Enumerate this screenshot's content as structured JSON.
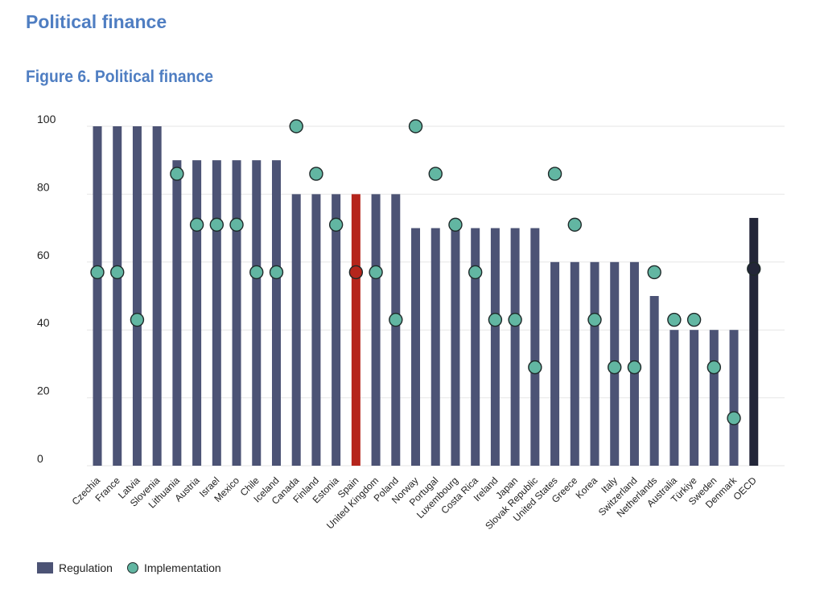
{
  "page": {
    "heading": "Political finance",
    "figure_title": "Figure 6. Political finance"
  },
  "colors": {
    "regulation": "#4c5375",
    "highlight": "#b5251c",
    "oecd": "#232639",
    "implementation": "#62b6a2",
    "grid": "#e6e6e6",
    "heading": "#4f7ec2"
  },
  "chart_data": {
    "type": "bar",
    "categories": [
      "Czechia",
      "France",
      "Latvia",
      "Slovenia",
      "Lithuania",
      "Austria",
      "Israel",
      "Mexico",
      "Chile",
      "Iceland",
      "Canada",
      "Finland",
      "Estonia",
      "Spain",
      "United Kingdom",
      "Poland",
      "Norway",
      "Portugal",
      "Luxembourg",
      "Costa Rica",
      "Ireland",
      "Japan",
      "Slovak Republic",
      "United States",
      "Greece",
      "Korea",
      "Italy",
      "Switzerland",
      "Netherlands",
      "Australia",
      "Türkiye",
      "Sweden",
      "Denmark",
      "OECD"
    ],
    "series": [
      {
        "name": "Regulation",
        "kind": "bar",
        "values": [
          100,
          100,
          100,
          100,
          90,
          90,
          90,
          90,
          90,
          90,
          80,
          80,
          80,
          80,
          80,
          80,
          70,
          70,
          70,
          70,
          70,
          70,
          70,
          60,
          60,
          60,
          60,
          60,
          50,
          40,
          40,
          40,
          40,
          73
        ]
      },
      {
        "name": "Implementation",
        "kind": "marker",
        "values": [
          57,
          57,
          43,
          null,
          86,
          71,
          71,
          71,
          57,
          57,
          100,
          86,
          71,
          57,
          57,
          43,
          100,
          86,
          71,
          57,
          43,
          43,
          29,
          86,
          71,
          43,
          29,
          29,
          57,
          43,
          43,
          29,
          14,
          58
        ]
      }
    ],
    "highlight_categories": [
      "Spain"
    ],
    "aggregate_categories": [
      "OECD"
    ],
    "ylim": [
      0,
      100
    ],
    "yticks": [
      0,
      20,
      40,
      60,
      80,
      100
    ],
    "grid": true,
    "legend_position": "bottom-left",
    "xlabel": "",
    "ylabel": ""
  }
}
